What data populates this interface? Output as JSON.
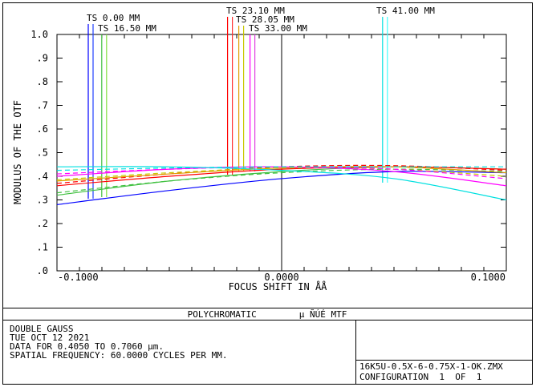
{
  "chart_data": {
    "type": "line",
    "xlabel": "FOCUS SHIFT IN  ÅÅ",
    "ylabel": "MODULUS OF THE OTF",
    "xlim": [
      -0.1,
      0.1
    ],
    "ylim": [
      0.0,
      1.0
    ],
    "x_ticks": [
      "-0.1000",
      "0.0000",
      "0.1000"
    ],
    "y_ticks": [
      ".0",
      ".1",
      ".2",
      ".3",
      ".4",
      ".5",
      ".6",
      ".7",
      ".8",
      ".9",
      "1.0"
    ],
    "grid": false,
    "field_markers": [
      {
        "label": "TS 0.00 MM",
        "x": -0.085,
        "colors": [
          "#0000ff",
          "#2040ff"
        ]
      },
      {
        "label": "TS 16.50 MM",
        "x": -0.079,
        "colors": [
          "#40c040",
          "#80e040"
        ]
      },
      {
        "label": "TS 23.10 MM",
        "x": -0.023,
        "colors": [
          "#ff0000",
          "#ff3030"
        ]
      },
      {
        "label": "TS 28.05 MM",
        "x": -0.018,
        "colors": [
          "#e0a000",
          "#c8c800"
        ]
      },
      {
        "label": "TS 33.00 MM",
        "x": -0.013,
        "colors": [
          "#ff00ff",
          "#e040e0"
        ]
      },
      {
        "label": "TS 41.00 MM",
        "x": 0.046,
        "colors": [
          "#00e0e0",
          "#40ffff"
        ]
      }
    ],
    "series": [
      {
        "color": "#0000ff",
        "dash": false,
        "x": [
          -0.1,
          -0.05,
          0.0,
          0.05,
          0.1
        ],
        "y": [
          0.28,
          0.34,
          0.39,
          0.42,
          0.415
        ]
      },
      {
        "color": "#40c040",
        "dash": false,
        "x": [
          -0.1,
          -0.05,
          0.0,
          0.05,
          0.1
        ],
        "y": [
          0.32,
          0.38,
          0.42,
          0.44,
          0.43
        ]
      },
      {
        "color": "#40c040",
        "dash": true,
        "x": [
          -0.1,
          -0.05,
          0.0,
          0.05,
          0.1
        ],
        "y": [
          0.33,
          0.38,
          0.415,
          0.43,
          0.42
        ]
      },
      {
        "color": "#ff0000",
        "dash": false,
        "x": [
          -0.1,
          -0.05,
          0.0,
          0.05,
          0.1
        ],
        "y": [
          0.36,
          0.4,
          0.43,
          0.44,
          0.43
        ]
      },
      {
        "color": "#ff0000",
        "dash": true,
        "x": [
          -0.1,
          -0.05,
          0.0,
          0.05,
          0.1
        ],
        "y": [
          0.37,
          0.41,
          0.44,
          0.445,
          0.425
        ]
      },
      {
        "color": "#e0a000",
        "dash": false,
        "x": [
          -0.1,
          -0.05,
          0.0,
          0.05,
          0.1
        ],
        "y": [
          0.38,
          0.41,
          0.435,
          0.44,
          0.415
        ]
      },
      {
        "color": "#c8c800",
        "dash": true,
        "x": [
          -0.1,
          -0.05,
          0.0,
          0.05,
          0.1
        ],
        "y": [
          0.385,
          0.415,
          0.435,
          0.43,
          0.4
        ]
      },
      {
        "color": "#ff00ff",
        "dash": false,
        "x": [
          -0.1,
          -0.05,
          0.0,
          0.05,
          0.1
        ],
        "y": [
          0.4,
          0.43,
          0.44,
          0.42,
          0.36
        ]
      },
      {
        "color": "#ff00ff",
        "dash": true,
        "x": [
          -0.1,
          -0.05,
          0.0,
          0.05,
          0.1
        ],
        "y": [
          0.41,
          0.43,
          0.44,
          0.43,
          0.39
        ]
      },
      {
        "color": "#00e0e0",
        "dash": false,
        "x": [
          -0.1,
          -0.05,
          0.0,
          0.05,
          0.1
        ],
        "y": [
          0.44,
          0.44,
          0.425,
          0.39,
          0.3
        ]
      },
      {
        "color": "#00e0e0",
        "dash": true,
        "x": [
          -0.1,
          -0.05,
          0.0,
          0.05,
          0.1
        ],
        "y": [
          0.425,
          0.435,
          0.44,
          0.44,
          0.44
        ]
      }
    ]
  },
  "panel": {
    "title": "POLYCHROMATIC        µ ÑÚÉ MTF",
    "info_lines": [
      "DOUBLE GAUSS",
      "TUE OCT 12 2021",
      "DATA FOR 0.4050 TO 0.7060 µm.",
      "SPATIAL FREQUENCY:  60.0000 CYCLES PER MM."
    ],
    "file_name": "16K5U-0.5X-6-0.75X-1-OK.ZMX",
    "configuration": "CONFIGURATION  1  OF  1"
  }
}
